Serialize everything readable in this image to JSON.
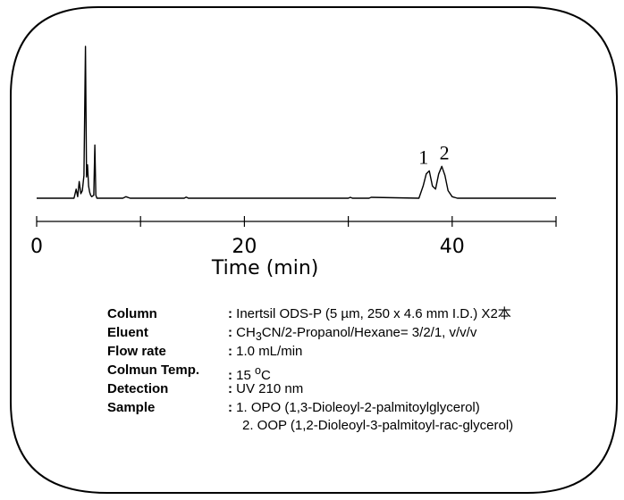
{
  "chart_data": {
    "type": "line",
    "title": "",
    "xlabel": "Time (min)",
    "ylabel": "",
    "xlim": [
      0,
      50
    ],
    "x_ticks": [
      0,
      20,
      40
    ],
    "x_tick_labels": [
      "0",
      "20",
      "40"
    ],
    "grid": false,
    "legend": "none",
    "series": [
      {
        "x": [
          0.0,
          3.6,
          3.8,
          3.95,
          4.1,
          4.25,
          4.4,
          4.55,
          4.7,
          4.8,
          4.9,
          5.0,
          5.1,
          5.2,
          5.3,
          5.5,
          5.6,
          5.7,
          5.8,
          6.0,
          6.5,
          8.3,
          8.6,
          9.0,
          14.2,
          14.4,
          14.6,
          30.0,
          30.2,
          30.4,
          32.0,
          32.2,
          36.8,
          37.2,
          37.5,
          37.8,
          38.1,
          38.4,
          38.7,
          39.0,
          39.3,
          39.6,
          40.0,
          40.5,
          50.0
        ],
        "y": [
          0.0,
          0.0,
          0.06,
          0.01,
          0.11,
          0.03,
          0.05,
          0.15,
          1.0,
          0.14,
          0.22,
          0.08,
          0.04,
          0.02,
          0.01,
          0.02,
          0.35,
          0.02,
          0.0,
          0.0,
          0.0,
          0.0,
          0.01,
          0.0,
          0.0,
          0.007,
          0.0,
          0.0,
          0.006,
          0.0,
          0.0,
          0.006,
          0.0,
          0.08,
          0.16,
          0.18,
          0.08,
          0.06,
          0.16,
          0.21,
          0.15,
          0.05,
          0.01,
          0.0,
          0.0
        ]
      }
    ],
    "peak_labels": [
      {
        "text": "1",
        "x": 37.5,
        "y": 0.18
      },
      {
        "text": "2",
        "x": 39.0,
        "y": 0.21
      }
    ]
  },
  "conditions": [
    {
      "label": "Column",
      "value_html": "Inertsil ODS-P (5 µm, 250 x 4.6 mm I.D.) X2本"
    },
    {
      "label": "Eluent",
      "value_html": "CH<sub>3</sub>CN/2-Propanol/Hexane= 3/2/1, v/v/v"
    },
    {
      "label": "Flow rate",
      "value_html": "1.0 mL/min"
    },
    {
      "label": "Colmun Temp.",
      "value_html": "15 <sup>o</sup>C"
    },
    {
      "label": "Detection",
      "value_html": "UV 210 nm"
    },
    {
      "label": "Sample",
      "value_html": "1. OPO (1,3-Dioleoyl-2-palmitoylglycerol)",
      "extra": "2. OOP (1,2-Dioleoyl-3-palmitoyl-rac-glycerol)"
    }
  ]
}
